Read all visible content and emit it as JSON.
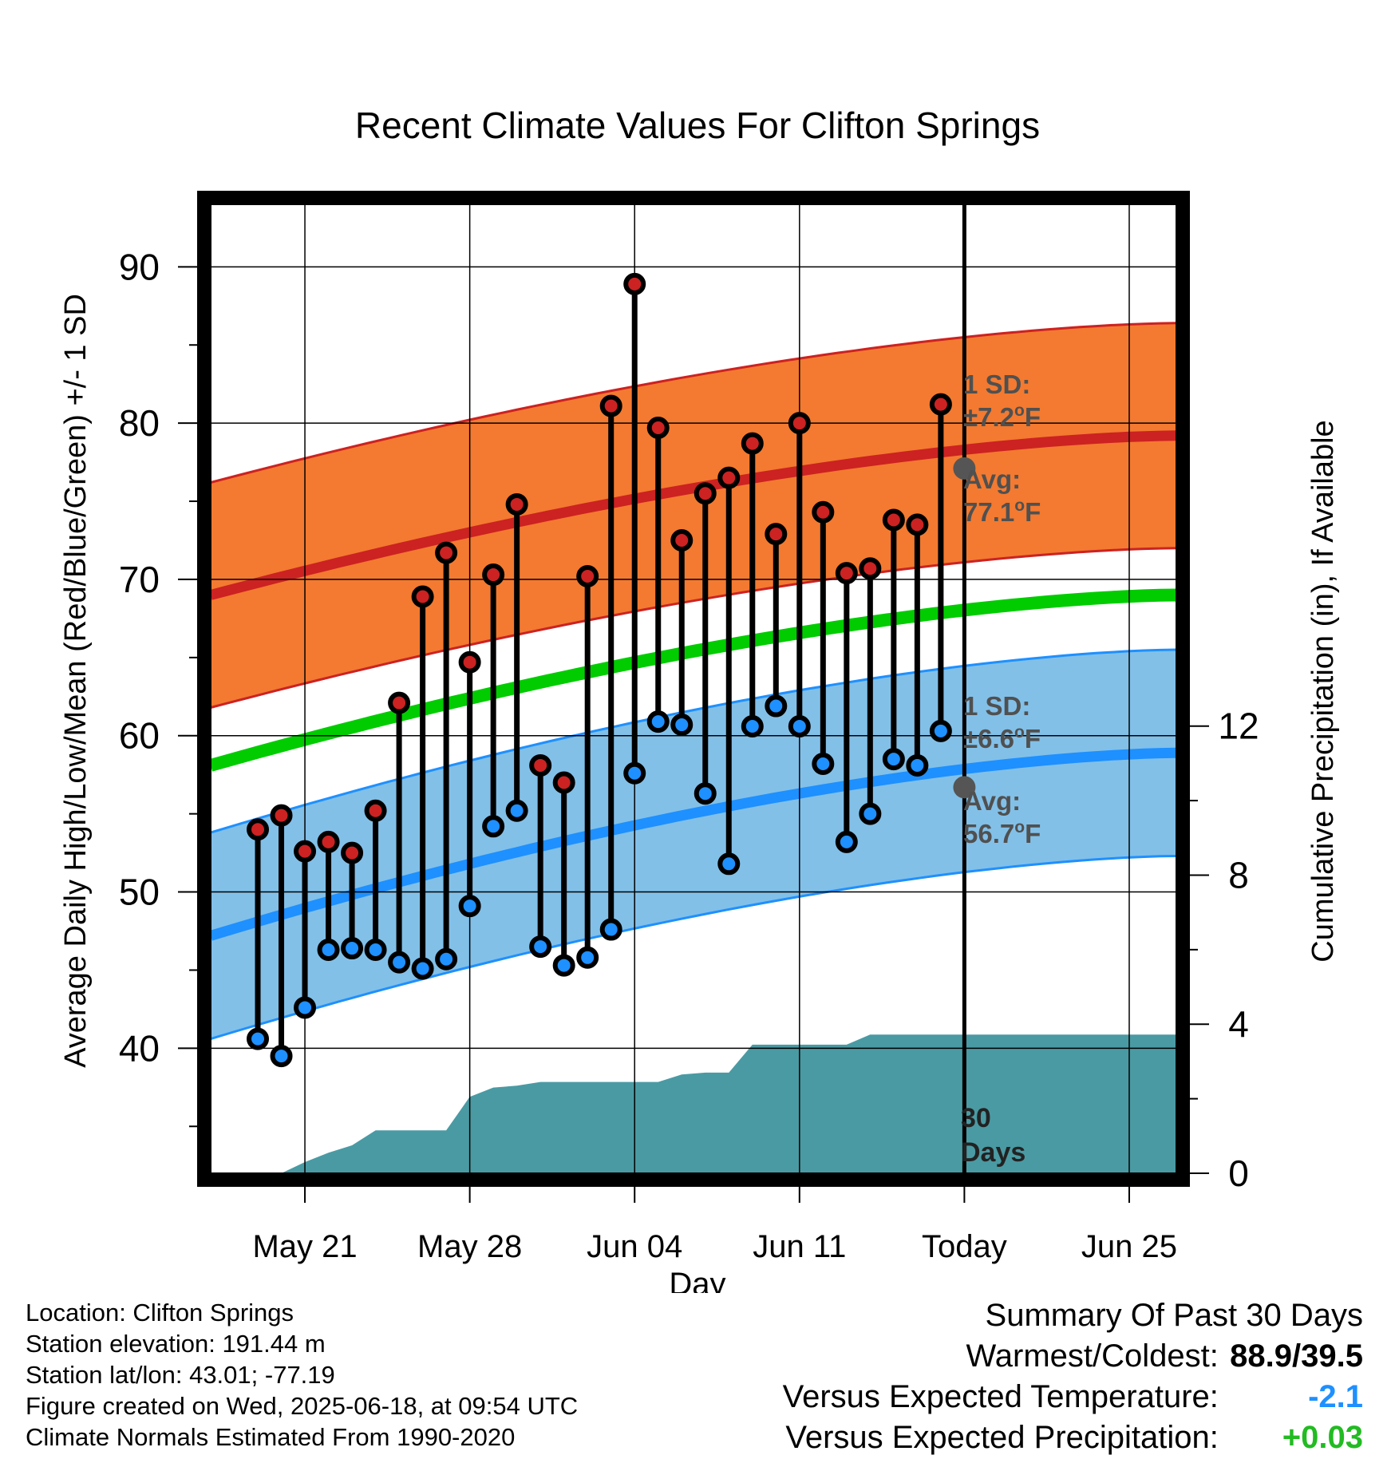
{
  "chart_data": {
    "type": "line",
    "title": "Recent Climate Values For Clifton Springs",
    "xlabel": "Day",
    "ylabel_left": "Average Daily High/Low/Mean (Red/Blue/Green) +/- 1 SD",
    "ylabel_right": "Cumulative Precipitation (in), If Available",
    "x_ticks": [
      "May 21",
      "May 28",
      "Jun 04",
      "Jun 11",
      "Today",
      "Jun 25"
    ],
    "x_tick_dates": [
      "2025-05-21",
      "2025-05-28",
      "2025-06-04",
      "2025-06-11",
      "2025-06-18",
      "2025-06-25"
    ],
    "xlim": [
      "2025-05-17",
      "2025-06-27"
    ],
    "today": "2025-06-18",
    "y_ticks_left": [
      40,
      50,
      60,
      70,
      80,
      90
    ],
    "ylim_left": [
      32,
      94
    ],
    "y_ticks_right": [
      0,
      4,
      8,
      12
    ],
    "ylim_right": [
      0,
      26
    ],
    "grid": true,
    "dates": [
      "2025-05-19",
      "2025-05-20",
      "2025-05-21",
      "2025-05-22",
      "2025-05-23",
      "2025-05-24",
      "2025-05-25",
      "2025-05-26",
      "2025-05-27",
      "2025-05-28",
      "2025-05-29",
      "2025-05-30",
      "2025-05-31",
      "2025-06-01",
      "2025-06-02",
      "2025-06-03",
      "2025-06-04",
      "2025-06-05",
      "2025-06-06",
      "2025-06-07",
      "2025-06-08",
      "2025-06-09",
      "2025-06-10",
      "2025-06-11",
      "2025-06-12",
      "2025-06-13",
      "2025-06-14",
      "2025-06-15",
      "2025-06-16",
      "2025-06-17"
    ],
    "series": [
      {
        "name": "High",
        "color": "#cc2222",
        "values": [
          54.0,
          54.9,
          52.6,
          53.2,
          52.5,
          55.2,
          62.1,
          68.9,
          71.7,
          64.7,
          70.3,
          74.8,
          58.1,
          57.0,
          70.2,
          81.1,
          88.9,
          79.7,
          72.5,
          75.5,
          76.5,
          78.7,
          72.9,
          80.0,
          74.3,
          70.4,
          70.7,
          73.8,
          73.5,
          81.2
        ]
      },
      {
        "name": "Low",
        "color": "#1e90ff",
        "values": [
          40.6,
          39.5,
          42.6,
          46.3,
          46.4,
          46.3,
          45.5,
          45.1,
          45.7,
          49.1,
          54.2,
          55.2,
          46.5,
          45.3,
          45.8,
          47.6,
          57.6,
          60.9,
          60.7,
          56.3,
          51.8,
          60.6,
          61.9,
          60.6,
          58.2,
          53.2,
          55.0,
          58.5,
          58.1,
          60.3
        ]
      }
    ],
    "normals": {
      "high": {
        "avg_start": 69.0,
        "avg_end": 79.2,
        "sd": 7.2,
        "avg_today": 77.1,
        "color": "#cc2222",
        "band_color": "#f37a30"
      },
      "low": {
        "avg_start": 47.2,
        "avg_end": 58.9,
        "sd": 6.6,
        "avg_today": 56.7,
        "color": "#1e90ff",
        "band_color": "#82c0e8"
      },
      "mean": {
        "start": 58.1,
        "end": 69.0,
        "color": "#00cc00"
      }
    },
    "precip": {
      "color": "#4a9aa3",
      "dates": [
        "2025-05-19",
        "2025-05-20",
        "2025-05-21",
        "2025-05-22",
        "2025-05-23",
        "2025-05-24",
        "2025-05-25",
        "2025-05-26",
        "2025-05-27",
        "2025-05-28",
        "2025-05-29",
        "2025-05-30",
        "2025-05-31",
        "2025-06-01",
        "2025-06-02",
        "2025-06-03",
        "2025-06-04",
        "2025-06-05",
        "2025-06-06",
        "2025-06-07",
        "2025-06-08",
        "2025-06-09",
        "2025-06-10",
        "2025-06-11",
        "2025-06-12",
        "2025-06-13",
        "2025-06-14",
        "2025-06-15",
        "2025-06-16",
        "2025-06-17",
        "2025-06-18",
        "2025-06-27"
      ],
      "values": [
        0.0,
        0.0,
        0.3,
        0.55,
        0.75,
        1.15,
        1.15,
        1.15,
        1.15,
        2.05,
        2.3,
        2.35,
        2.45,
        2.45,
        2.45,
        2.45,
        2.45,
        2.45,
        2.65,
        2.7,
        2.7,
        3.45,
        3.45,
        3.45,
        3.45,
        3.45,
        3.72,
        3.72,
        3.72,
        3.72,
        3.72,
        3.72
      ]
    },
    "annotations": {
      "high_sd_label": "1 SD:",
      "high_sd_value": "±7.2",
      "high_avg_label": "Avg:",
      "high_avg_value": "77.1",
      "low_sd_label": "1 SD:",
      "low_sd_value": "±6.6",
      "low_avg_label": "Avg:",
      "low_avg_value": "56.7",
      "degree_symbol": "o",
      "unit": "F",
      "days_label": "30",
      "days_label2": "Days"
    }
  },
  "footer": {
    "location": "Location: Clifton Springs",
    "elevation": "Station elevation: 191.44 m",
    "latlon": "Station lat/lon: 43.01; -77.19",
    "created": "Figure created on Wed, 2025-06-18, at 09:54 UTC",
    "normals": "Climate Normals Estimated From 1990-2020"
  },
  "summary": {
    "heading": "Summary Of Past 30 Days",
    "warmest_label": "Warmest/Coldest:",
    "warmest_value": "88.9/39.5",
    "temp_label": "Versus Expected Temperature:",
    "temp_value": "-2.1",
    "temp_color": "#1e90ff",
    "precip_label": "Versus Expected Precipitation:",
    "precip_value": "+0.03",
    "precip_color": "#22bb22"
  }
}
